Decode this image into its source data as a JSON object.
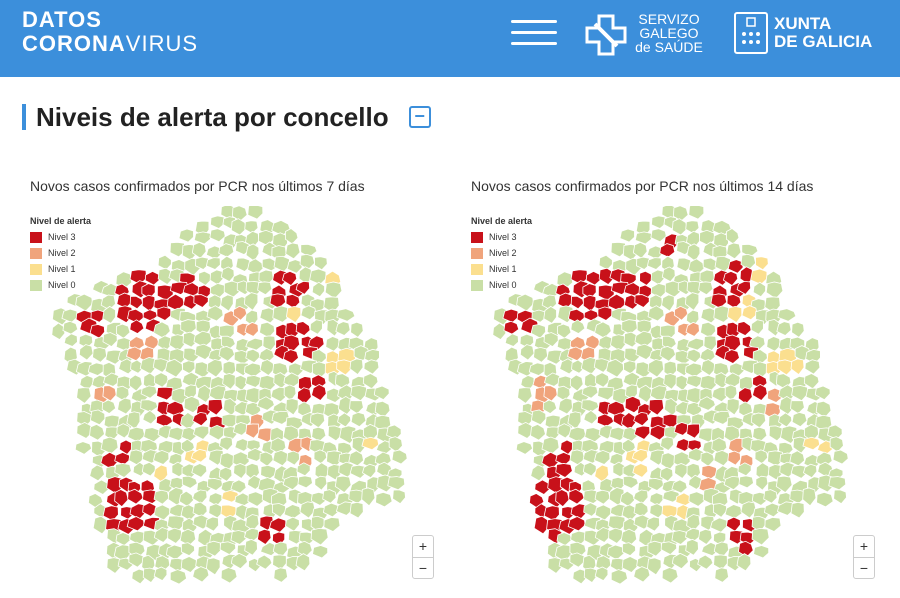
{
  "header": {
    "logo_line1": "DATOS",
    "logo_line2_bold": "CORONA",
    "logo_line2_rest": "VIRUS",
    "menu_icon": "hamburger-menu-icon",
    "sgs_lines": [
      "SERVIZO",
      "GALEGO",
      "de SAÚDE"
    ],
    "xunta_lines": [
      "XUNTA",
      "DE GALICIA"
    ]
  },
  "section": {
    "title": "Niveis de alerta por concello",
    "collapse_label": "−"
  },
  "colors": {
    "header_bg": "#3c8fdb",
    "nivel3": "#c8111a",
    "nivel2": "#f0a47c",
    "nivel1": "#fbdf8f",
    "nivel0": "#c9dfa6",
    "border": "#ffffff"
  },
  "legend": {
    "title": "Nivel de alerta",
    "items": [
      {
        "label": "Nivel 3",
        "level": 3
      },
      {
        "label": "Nivel 2",
        "level": 2
      },
      {
        "label": "Nivel 1",
        "level": 1
      },
      {
        "label": "Nivel 0",
        "level": 0
      }
    ]
  },
  "maps": [
    {
      "title": "Novos casos confirmados por PCR nos últimos 7 días"
    },
    {
      "title": "Novos casos confirmados por PCR nos últimos 14 días"
    }
  ],
  "zoom": {
    "in_label": "+",
    "out_label": "−"
  }
}
